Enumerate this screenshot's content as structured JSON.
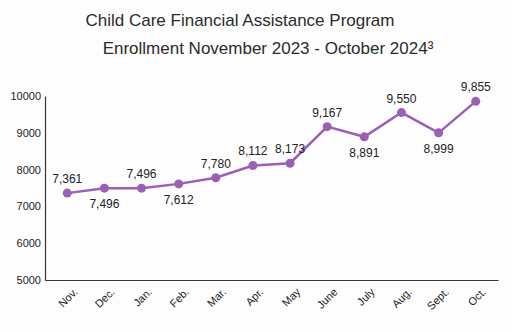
{
  "chart_data": {
    "type": "line",
    "title": [
      "Child Care Financial Assistance Program",
      "Enrollment November 2023 - October 2024³"
    ],
    "categories": [
      "Nov.",
      "Dec.",
      "Jan.",
      "Feb.",
      "Mar.",
      "Apr.",
      "May",
      "June",
      "July",
      "Aug.",
      "Sept.",
      "Oct."
    ],
    "values": [
      7361,
      7496,
      7496,
      7612,
      7780,
      8112,
      8173,
      9167,
      8891,
      9550,
      8999,
      9855
    ],
    "value_labels": [
      "7,361",
      "7,496",
      "7,496",
      "7,612",
      "7,780",
      "8,112",
      "8,173",
      "9,167",
      "8,891",
      "9,550",
      "8,999",
      "9,855"
    ],
    "color": "#9b5fb5",
    "marker": "circle",
    "line_style": "solid",
    "ylim": [
      5000,
      10000
    ],
    "yticks": [
      5000,
      6000,
      7000,
      8000,
      9000,
      10000
    ],
    "grid": false,
    "data_labels": true
  }
}
